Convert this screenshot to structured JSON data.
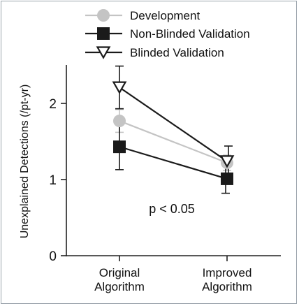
{
  "chart_data": {
    "type": "line",
    "categories": [
      "Original\nAlgorithm",
      "Improved\nAlgorithm"
    ],
    "ylabel": "Unexplained Detections (/pt-yr)",
    "xlabel": "",
    "ylim": [
      0,
      2.5
    ],
    "yticks": [
      0,
      1,
      2
    ],
    "grid": false,
    "legend_position": "top",
    "annotation": "p < 0.05",
    "series": [
      {
        "name": "Development",
        "marker": "circle",
        "color": "#c4c4c4",
        "values": [
          1.77,
          1.22
        ],
        "err": [
          0.15,
          0.1
        ]
      },
      {
        "name": "Non-Blinded Validation",
        "marker": "square",
        "color": "#1a1a1a",
        "values": [
          1.43,
          1.01
        ],
        "err": [
          0.3,
          0.19
        ]
      },
      {
        "name": "Blinded Validation",
        "marker": "triangle-down",
        "color": "#1a1a1a",
        "values": [
          2.21,
          1.24
        ],
        "err": [
          0.28,
          0.2
        ]
      }
    ]
  }
}
